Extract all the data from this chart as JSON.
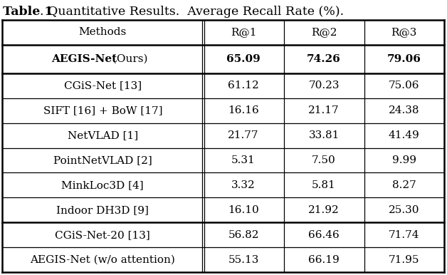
{
  "title_bold": "Table 1",
  "title_normal": ". Quantitative Results.  Average Recall Rate (%).",
  "headers": [
    "Methods",
    "R@1",
    "R@2",
    "R@3"
  ],
  "rows": [
    {
      "method_bold": "AEGIS-Net",
      "method_normal": " (Ours)",
      "r1": "65.09",
      "r2": "74.26",
      "r3": "79.06",
      "bold": true
    },
    {
      "method": "CGiS-Net [13]",
      "r1": "61.12",
      "r2": "70.23",
      "r3": "75.06",
      "bold": false
    },
    {
      "method": "SIFT [16] + BoW [17]",
      "r1": "16.16",
      "r2": "21.17",
      "r3": "24.38",
      "bold": false
    },
    {
      "method": "NetVLAD [1]",
      "r1": "21.77",
      "r2": "33.81",
      "r3": "41.49",
      "bold": false
    },
    {
      "method": "PointNetVLAD [2]",
      "r1": "5.31",
      "r2": "7.50",
      "r3": "9.99",
      "bold": false
    },
    {
      "method": "MinkLoc3D [4]",
      "r1": "3.32",
      "r2": "5.81",
      "r3": "8.27",
      "bold": false
    },
    {
      "method": "Indoor DH3D [9]",
      "r1": "16.10",
      "r2": "21.92",
      "r3": "25.30",
      "bold": false
    },
    {
      "method": "CGiS-Net-20 [13]",
      "r1": "56.82",
      "r2": "66.46",
      "r3": "71.74",
      "bold": false
    },
    {
      "method": "AEGIS-Net (w/o attention)",
      "r1": "55.13",
      "r2": "66.19",
      "r3": "71.95",
      "bold": false
    }
  ],
  "background_color": "#ffffff",
  "text_color": "#000000",
  "line_color": "#000000",
  "font_size": 11.0,
  "title_font_size": 12.5
}
